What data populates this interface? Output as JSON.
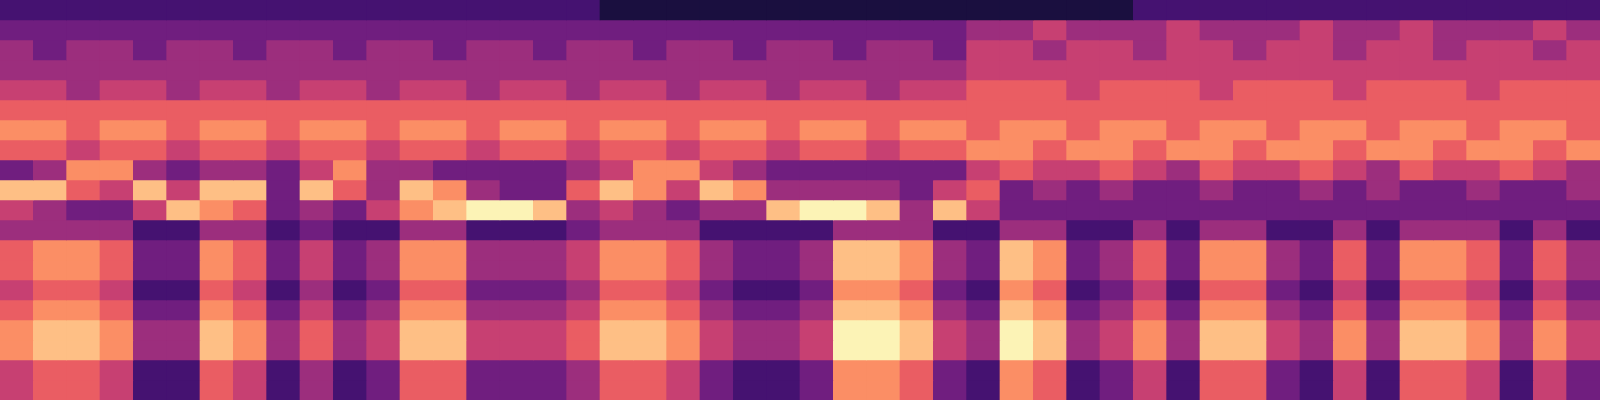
{
  "chart_data": {
    "type": "heatmap",
    "tick_labels": false,
    "cells": [
      [
        2,
        2,
        2,
        2,
        2,
        2,
        2,
        2,
        2,
        2,
        2,
        2,
        2,
        2,
        2,
        2,
        2,
        2,
        1,
        1,
        1,
        1,
        1,
        1,
        1,
        1,
        1,
        1,
        1,
        1,
        1,
        1,
        1,
        1,
        2,
        2,
        2,
        2,
        2,
        2,
        2,
        2,
        2,
        2,
        2,
        2,
        2,
        2
      ],
      [
        3,
        3,
        3,
        3,
        3,
        3,
        3,
        3,
        3,
        3,
        3,
        3,
        3,
        3,
        3,
        3,
        3,
        3,
        3,
        3,
        3,
        3,
        3,
        3,
        3,
        3,
        3,
        3,
        3,
        4,
        4,
        5,
        4,
        4,
        4,
        5,
        4,
        4,
        4,
        5,
        4,
        4,
        5,
        4,
        4,
        4,
        5,
        4
      ],
      [
        4,
        3,
        4,
        4,
        3,
        4,
        4,
        3,
        4,
        4,
        3,
        4,
        4,
        3,
        4,
        4,
        3,
        4,
        4,
        3,
        4,
        4,
        3,
        4,
        4,
        3,
        4,
        4,
        3,
        5,
        5,
        4,
        5,
        5,
        4,
        5,
        5,
        4,
        5,
        5,
        4,
        5,
        5,
        4,
        5,
        5,
        4,
        5
      ],
      [
        4,
        4,
        4,
        4,
        4,
        4,
        4,
        4,
        4,
        4,
        4,
        4,
        4,
        4,
        4,
        4,
        4,
        4,
        4,
        4,
        4,
        4,
        4,
        4,
        4,
        4,
        4,
        4,
        4,
        5,
        5,
        5,
        5,
        5,
        5,
        5,
        5,
        5,
        5,
        5,
        5,
        5,
        5,
        5,
        5,
        5,
        5,
        5
      ],
      [
        5,
        5,
        4,
        5,
        5,
        4,
        5,
        5,
        4,
        5,
        5,
        4,
        5,
        5,
        4,
        5,
        5,
        4,
        5,
        5,
        4,
        5,
        5,
        4,
        5,
        5,
        4,
        5,
        5,
        6,
        6,
        6,
        5,
        6,
        6,
        6,
        5,
        6,
        6,
        6,
        5,
        6,
        6,
        6,
        5,
        6,
        6,
        6
      ],
      [
        6,
        6,
        6,
        6,
        6,
        6,
        6,
        6,
        6,
        6,
        6,
        6,
        6,
        6,
        6,
        6,
        6,
        6,
        6,
        6,
        6,
        6,
        6,
        6,
        6,
        6,
        6,
        6,
        6,
        6,
        6,
        6,
        6,
        6,
        6,
        6,
        6,
        6,
        6,
        6,
        6,
        6,
        6,
        6,
        6,
        6,
        6,
        6
      ],
      [
        7,
        7,
        6,
        7,
        7,
        6,
        7,
        7,
        6,
        7,
        7,
        6,
        7,
        7,
        6,
        7,
        7,
        6,
        7,
        7,
        6,
        7,
        7,
        6,
        7,
        7,
        6,
        7,
        7,
        6,
        7,
        7,
        6,
        7,
        7,
        6,
        7,
        7,
        6,
        7,
        7,
        6,
        7,
        7,
        6,
        7,
        7,
        6
      ],
      [
        6,
        6,
        5,
        6,
        6,
        5,
        6,
        6,
        5,
        6,
        6,
        5,
        6,
        6,
        5,
        6,
        6,
        5,
        6,
        6,
        5,
        6,
        6,
        5,
        6,
        6,
        5,
        6,
        6,
        7,
        7,
        6,
        7,
        7,
        6,
        7,
        7,
        6,
        7,
        7,
        6,
        7,
        7,
        6,
        7,
        7,
        6,
        7
      ],
      [
        3,
        4,
        7,
        7,
        4,
        3,
        4,
        4,
        3,
        5,
        7,
        4,
        4,
        3,
        3,
        3,
        3,
        4,
        5,
        7,
        7,
        5,
        4,
        3,
        3,
        3,
        3,
        3,
        3,
        5,
        6,
        5,
        5,
        6,
        5,
        4,
        6,
        5,
        5,
        6,
        5,
        4,
        6,
        5,
        5,
        6,
        5,
        4
      ],
      [
        8,
        8,
        6,
        5,
        8,
        5,
        8,
        8,
        3,
        8,
        6,
        4,
        8,
        7,
        4,
        3,
        3,
        6,
        8,
        7,
        5,
        8,
        7,
        4,
        4,
        4,
        4,
        3,
        5,
        6,
        3,
        4,
        3,
        4,
        3,
        3,
        4,
        3,
        3,
        4,
        3,
        4,
        3,
        3,
        4,
        3,
        3,
        4
      ],
      [
        5,
        4,
        3,
        3,
        5,
        8,
        7,
        6,
        3,
        4,
        3,
        5,
        7,
        8,
        9,
        9,
        8,
        4,
        5,
        4,
        3,
        4,
        4,
        8,
        9,
        9,
        8,
        4,
        8,
        5,
        3,
        3,
        3,
        3,
        3,
        3,
        3,
        3,
        3,
        3,
        3,
        3,
        3,
        3,
        3,
        3,
        3,
        3
      ],
      [
        4,
        4,
        4,
        4,
        2,
        2,
        4,
        4,
        2,
        3,
        2,
        2,
        4,
        4,
        2,
        2,
        2,
        3,
        4,
        4,
        4,
        2,
        2,
        2,
        2,
        4,
        4,
        4,
        2,
        2,
        4,
        4,
        2,
        2,
        4,
        2,
        4,
        4,
        2,
        2,
        4,
        2,
        4,
        4,
        4,
        2,
        4,
        2
      ],
      [
        6,
        7,
        7,
        6,
        3,
        3,
        7,
        6,
        3,
        5,
        3,
        4,
        7,
        7,
        4,
        4,
        4,
        5,
        7,
        7,
        6,
        4,
        3,
        3,
        4,
        8,
        8,
        7,
        4,
        3,
        8,
        7,
        3,
        4,
        6,
        3,
        7,
        7,
        4,
        3,
        6,
        3,
        7,
        7,
        6,
        3,
        6,
        4
      ],
      [
        6,
        7,
        7,
        6,
        3,
        3,
        7,
        6,
        3,
        5,
        3,
        4,
        7,
        7,
        4,
        4,
        4,
        5,
        7,
        7,
        6,
        4,
        3,
        3,
        4,
        8,
        8,
        7,
        4,
        3,
        8,
        7,
        3,
        4,
        6,
        3,
        7,
        7,
        4,
        3,
        6,
        3,
        7,
        7,
        6,
        3,
        6,
        4
      ],
      [
        5,
        6,
        6,
        5,
        2,
        2,
        6,
        5,
        2,
        4,
        2,
        3,
        6,
        6,
        3,
        3,
        3,
        4,
        6,
        6,
        5,
        3,
        2,
        2,
        3,
        7,
        7,
        6,
        3,
        2,
        7,
        6,
        2,
        3,
        5,
        2,
        6,
        6,
        3,
        2,
        5,
        2,
        6,
        6,
        5,
        2,
        5,
        3
      ],
      [
        6,
        7,
        7,
        6,
        3,
        3,
        7,
        6,
        3,
        5,
        3,
        4,
        7,
        7,
        4,
        4,
        4,
        5,
        7,
        7,
        6,
        4,
        3,
        3,
        4,
        8,
        8,
        7,
        4,
        3,
        8,
        7,
        3,
        4,
        6,
        3,
        7,
        7,
        4,
        3,
        6,
        3,
        7,
        7,
        6,
        3,
        6,
        4
      ],
      [
        7,
        8,
        8,
        7,
        4,
        4,
        8,
        7,
        4,
        6,
        4,
        5,
        8,
        8,
        5,
        5,
        5,
        6,
        8,
        8,
        7,
        5,
        4,
        4,
        5,
        9,
        9,
        8,
        5,
        4,
        9,
        8,
        4,
        5,
        7,
        4,
        8,
        8,
        5,
        4,
        7,
        4,
        8,
        8,
        7,
        4,
        7,
        5
      ],
      [
        7,
        8,
        8,
        7,
        4,
        4,
        8,
        7,
        4,
        6,
        4,
        5,
        8,
        8,
        5,
        5,
        5,
        6,
        8,
        8,
        7,
        5,
        4,
        4,
        5,
        9,
        9,
        8,
        5,
        4,
        9,
        8,
        4,
        5,
        7,
        4,
        8,
        8,
        5,
        4,
        7,
        4,
        8,
        8,
        7,
        4,
        7,
        5
      ],
      [
        5,
        6,
        6,
        5,
        2,
        2,
        6,
        5,
        2,
        4,
        2,
        3,
        6,
        6,
        3,
        3,
        3,
        4,
        6,
        6,
        5,
        3,
        2,
        2,
        3,
        7,
        7,
        6,
        3,
        2,
        7,
        6,
        2,
        3,
        5,
        2,
        6,
        6,
        3,
        2,
        5,
        2,
        6,
        6,
        5,
        2,
        5,
        3
      ],
      [
        5,
        6,
        6,
        5,
        2,
        2,
        6,
        5,
        2,
        4,
        2,
        3,
        6,
        6,
        3,
        3,
        3,
        4,
        6,
        6,
        5,
        3,
        2,
        2,
        3,
        7,
        7,
        6,
        3,
        2,
        7,
        6,
        2,
        3,
        5,
        2,
        6,
        6,
        3,
        2,
        5,
        2,
        6,
        6,
        5,
        2,
        5,
        3
      ]
    ]
  }
}
